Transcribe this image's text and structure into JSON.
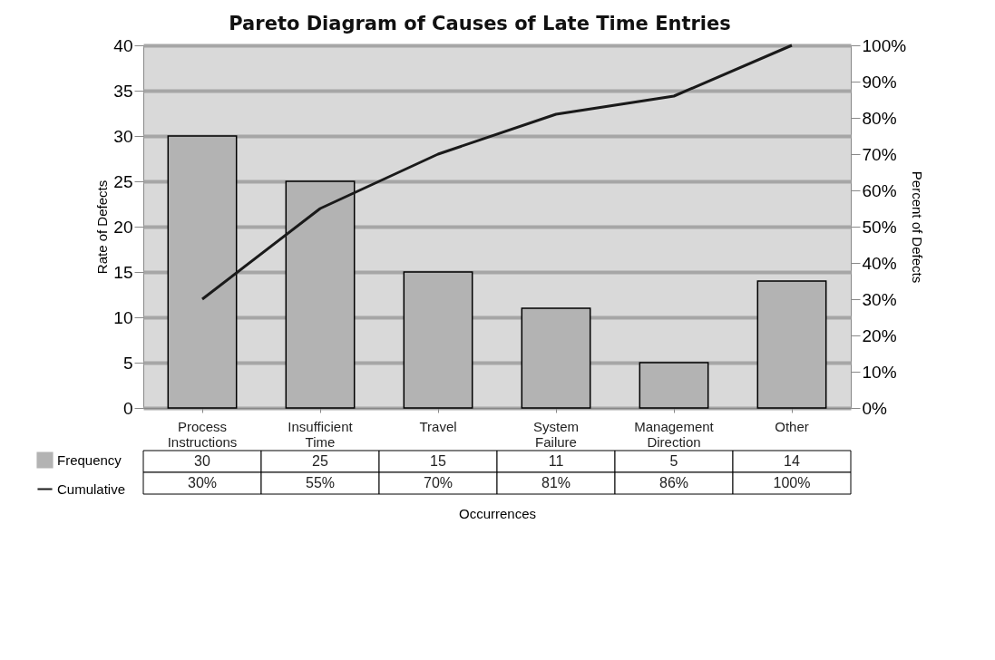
{
  "chart_data": {
    "type": "bar",
    "title": "Pareto Diagram of Causes of Late Time Entries",
    "categories": [
      "Process Instructions",
      "Insufficient Time",
      "Travel",
      "System Failure",
      "Management Direction",
      "Other"
    ],
    "series": [
      {
        "name": "Frequency",
        "color": "#b3b3b3",
        "values": [
          30,
          25,
          15,
          11,
          5,
          14
        ]
      },
      {
        "name": "Cumulative",
        "type": "line",
        "axis": "y2",
        "color": "#1a1a1a",
        "line_style": "solid",
        "values": [
          30,
          55,
          70,
          81,
          86,
          100
        ],
        "value_labels": [
          "30%",
          "55%",
          "70%",
          "81%",
          "86%",
          "100%"
        ]
      }
    ],
    "xlabel": "Occurrences",
    "ylabel": "Rate of Defects",
    "y2label": "Percent of Defects",
    "ylim": [
      0,
      40
    ],
    "yticks": [
      0,
      5,
      10,
      15,
      20,
      25,
      30,
      35,
      40
    ],
    "y2lim": [
      0,
      100
    ],
    "y2ticks": [
      {
        "value": 0,
        "label": "0%"
      },
      {
        "value": 10,
        "label": "10%"
      },
      {
        "value": 20,
        "label": "20%"
      },
      {
        "value": 30,
        "label": "30%"
      },
      {
        "value": 40,
        "label": "40%"
      },
      {
        "value": 50,
        "label": "50%"
      },
      {
        "value": 60,
        "label": "60%"
      },
      {
        "value": 70,
        "label": "70%"
      },
      {
        "value": 80,
        "label": "80%"
      },
      {
        "value": 90,
        "label": "90%"
      },
      {
        "value": 100,
        "label": "100%"
      }
    ],
    "grid": "y",
    "legend": "bottom left",
    "data_labels": true
  }
}
